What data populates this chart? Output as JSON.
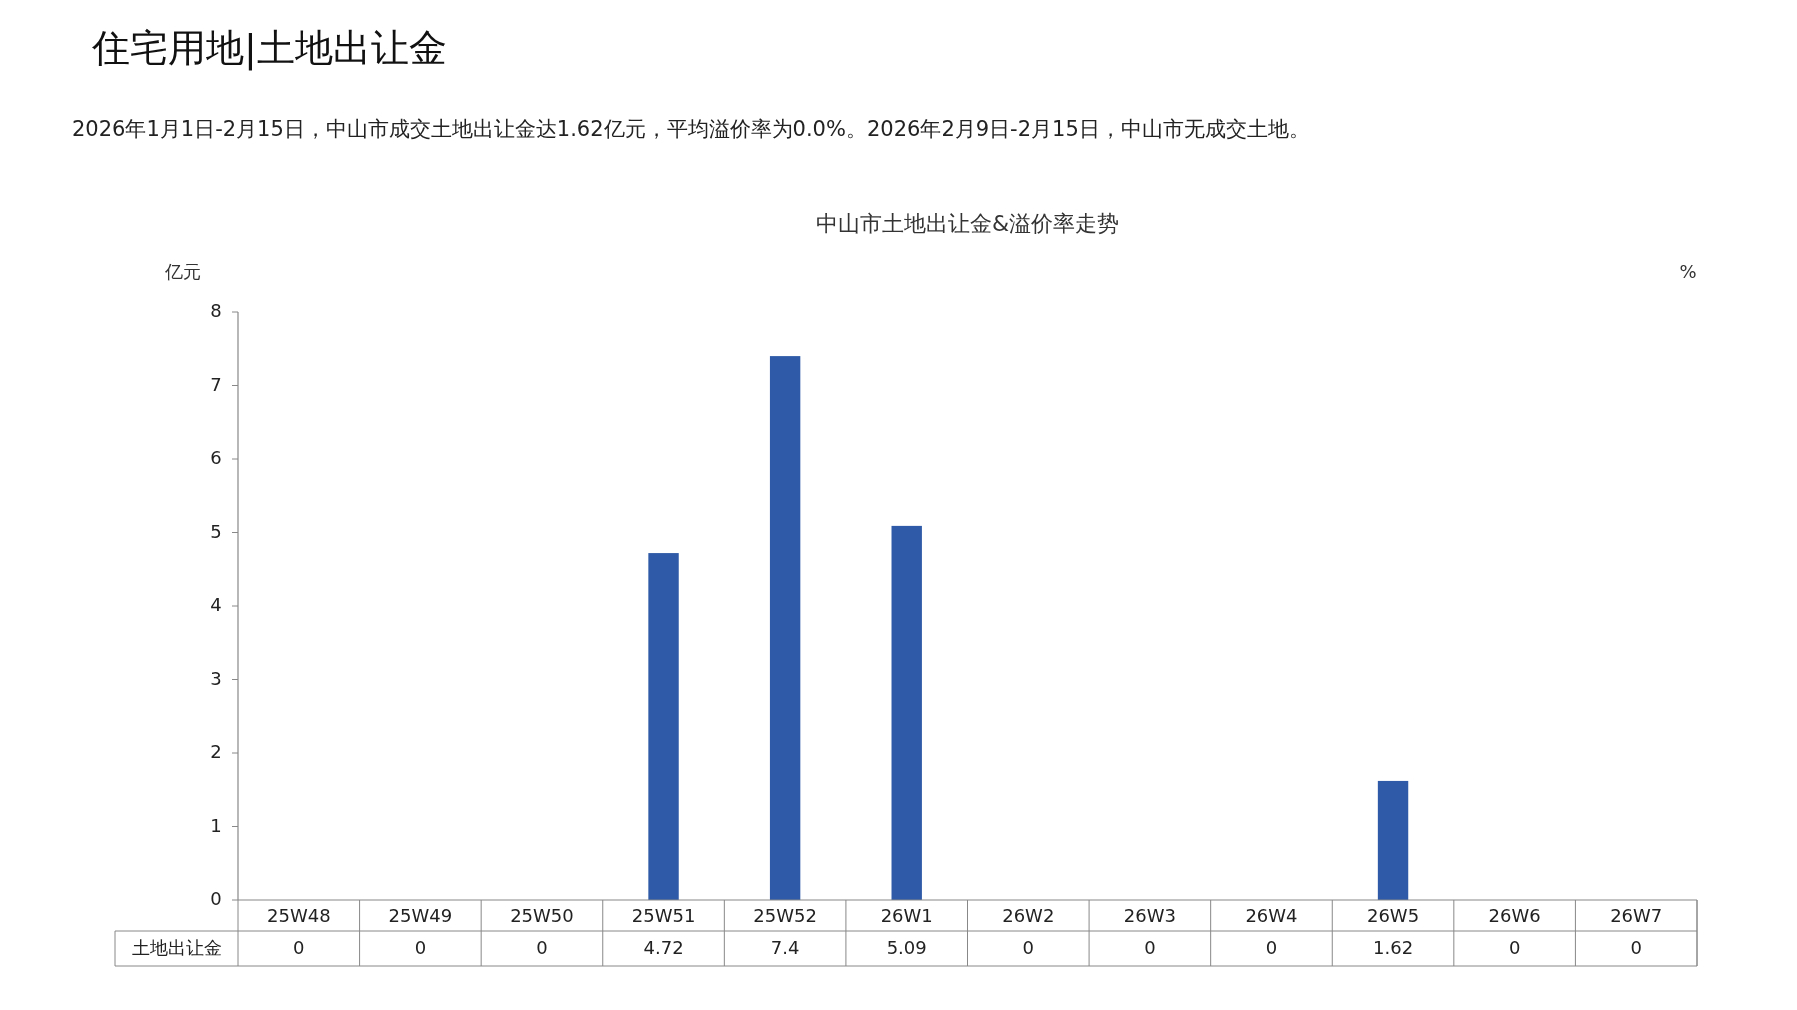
{
  "chart_data": {
    "type": "bar",
    "title": "中山市土地出让金&溢价率走势",
    "annotations": [
      "住宅用地|土地出让金",
      "2026年1月1日-2月15日，中山市成交土地出让金达1.62亿元，平均溢价率为0.0%。2026年2月9日-2月15日，中山市无成交土地。"
    ],
    "ylabel": "亿元",
    "y2label": "%",
    "categories": [
      "25W48",
      "25W49",
      "25W50",
      "25W51",
      "25W52",
      "26W1",
      "26W2",
      "26W3",
      "26W4",
      "26W5",
      "26W6",
      "26W7"
    ],
    "series": [
      {
        "name": "土地出让金",
        "color": "#2e5aa7",
        "values": [
          0,
          0,
          0,
          4.72,
          7.4,
          5.09,
          0,
          0,
          0,
          1.62,
          0,
          0
        ]
      }
    ],
    "ylim": [
      0,
      8
    ],
    "yticks": [
      0,
      1,
      2,
      3,
      4,
      5,
      6,
      7,
      8
    ],
    "data_labels": true,
    "grid": false
  }
}
